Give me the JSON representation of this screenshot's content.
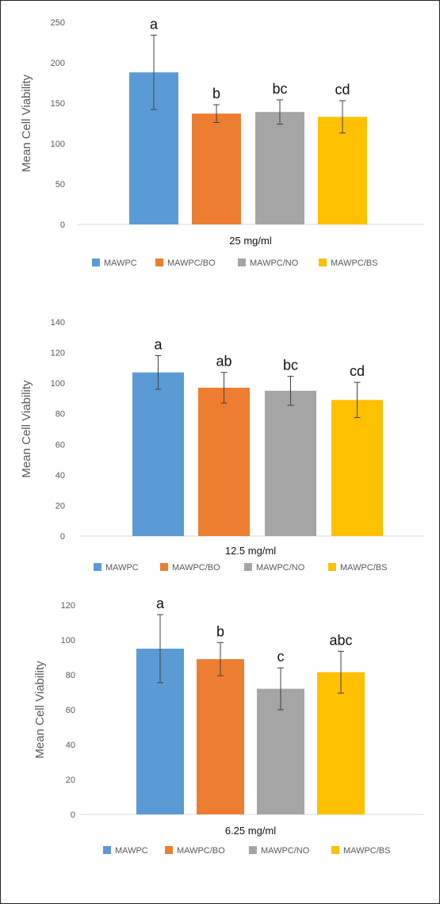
{
  "chart_data": [
    {
      "type": "bar",
      "xlabel": "25 mg/ml",
      "ylabel": "Mean Cell Viability",
      "ylim": [
        0,
        250
      ],
      "yticks": [
        0,
        50,
        100,
        150,
        200,
        250
      ],
      "legend": "bottom",
      "grid": false,
      "series": [
        {
          "name": "MAWPC",
          "color": "#5B9BD5",
          "value": 188,
          "error": 46,
          "label": "a"
        },
        {
          "name": "MAWPC/BO",
          "color": "#ED7D31",
          "value": 137,
          "error": 11,
          "label": "b"
        },
        {
          "name": "MAWPC/NO",
          "color": "#A5A5A5",
          "value": 139,
          "error": 15,
          "label": "bc"
        },
        {
          "name": "MAWPC/BS",
          "color": "#FFC000",
          "value": 133,
          "error": 20,
          "label": "cd"
        }
      ]
    },
    {
      "type": "bar",
      "xlabel": "12.5 mg/ml",
      "ylabel": "Mean Cell Viability",
      "ylim": [
        0,
        140
      ],
      "yticks": [
        0,
        20,
        40,
        60,
        80,
        100,
        120,
        140
      ],
      "legend": "bottom",
      "grid": false,
      "series": [
        {
          "name": "MAWPC",
          "color": "#5B9BD5",
          "value": 107,
          "error": 11,
          "label": "a"
        },
        {
          "name": "MAWPC/BO",
          "color": "#ED7D31",
          "value": 97,
          "error": 10,
          "label": "ab"
        },
        {
          "name": "MAWPC/NO",
          "color": "#A5A5A5",
          "value": 95,
          "error": 9.5,
          "label": "bc"
        },
        {
          "name": "MAWPC/BS",
          "color": "#FFC000",
          "value": 89,
          "error": 11.5,
          "label": "cd"
        }
      ]
    },
    {
      "type": "bar",
      "xlabel": "6.25 mg/ml",
      "ylabel": "Mean Cell Viability",
      "ylim": [
        0,
        120
      ],
      "yticks": [
        0,
        20,
        40,
        60,
        80,
        100,
        120
      ],
      "legend": "bottom",
      "grid": false,
      "series": [
        {
          "name": "MAWPC",
          "color": "#5B9BD5",
          "value": 95,
          "error": 19.5,
          "label": "a"
        },
        {
          "name": "MAWPC/BO",
          "color": "#ED7D31",
          "value": 89,
          "error": 9.5,
          "label": "b"
        },
        {
          "name": "MAWPC/NO",
          "color": "#A5A5A5",
          "value": 72,
          "error": 12,
          "label": "c"
        },
        {
          "name": "MAWPC/BS",
          "color": "#FFC000",
          "value": 81.5,
          "error": 12,
          "label": "abc"
        }
      ]
    }
  ]
}
